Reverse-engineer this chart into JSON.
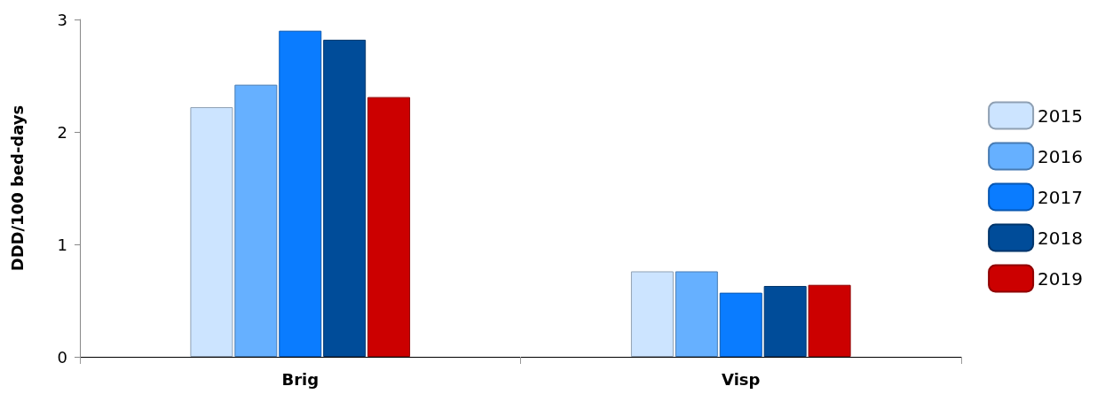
{
  "chart_data": {
    "type": "bar",
    "ylabel": "DDD/100 bed-days",
    "categories": [
      "Brig",
      "Visp"
    ],
    "series": [
      {
        "name": "2015",
        "color": "#cce4ff",
        "values": [
          2.22,
          0.76
        ]
      },
      {
        "name": "2016",
        "color": "#66b0ff",
        "values": [
          2.42,
          0.76
        ]
      },
      {
        "name": "2017",
        "color": "#0a7cff",
        "values": [
          2.9,
          0.57
        ]
      },
      {
        "name": "2018",
        "color": "#004c99",
        "values": [
          2.82,
          0.63
        ]
      },
      {
        "name": "2019",
        "color": "#cc0000",
        "values": [
          2.31,
          0.64
        ]
      }
    ],
    "ylim": [
      0,
      3
    ],
    "yticks": [
      0,
      1,
      2,
      3
    ],
    "grid": false,
    "legend": "right"
  }
}
